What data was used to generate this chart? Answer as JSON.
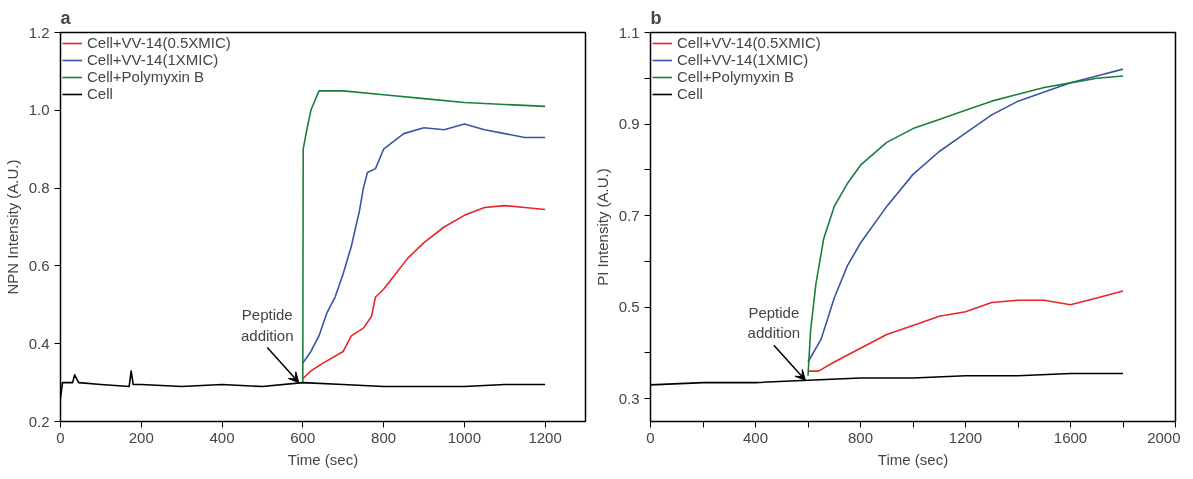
{
  "chart_data": [
    {
      "type": "line",
      "title": "a",
      "xlabel": "Time (sec)",
      "ylabel": "NPN Intensity (A.U.)",
      "xlim": [
        0,
        1300
      ],
      "ylim": [
        0.2,
        1.2
      ],
      "xticks": [
        0,
        200,
        400,
        600,
        800,
        1000,
        1200
      ],
      "yticks": [
        {
          "value": 0.2,
          "label": "0.2"
        },
        {
          "value": 0.4,
          "label": "0.4"
        },
        {
          "value": 0.6,
          "label": "0.6"
        },
        {
          "value": 0.8,
          "label": "0.8"
        },
        {
          "value": 1.0,
          "label": "1.0"
        },
        {
          "value": 1.2,
          "label": "1.2"
        }
      ],
      "grid": false,
      "legend": "top left",
      "marker": "none",
      "line_style": "solid",
      "annotations": [
        {
          "text": "Peptide\naddition",
          "x": 590,
          "y": 0.3
        }
      ],
      "series": [
        {
          "name": "Cell+VV-14(0.5XMIC)",
          "color": "#e8262a",
          "x": [
            600,
            620,
            650,
            700,
            720,
            750,
            770,
            780,
            800,
            830,
            860,
            900,
            950,
            1000,
            1050,
            1100,
            1150,
            1200
          ],
          "values": [
            0.31,
            0.33,
            0.35,
            0.38,
            0.42,
            0.44,
            0.47,
            0.52,
            0.54,
            0.58,
            0.62,
            0.66,
            0.7,
            0.73,
            0.75,
            0.755,
            0.75,
            0.745
          ]
        },
        {
          "name": "Cell+VV-14(1XMIC)",
          "color": "#3a55a4",
          "x": [
            600,
            620,
            640,
            660,
            680,
            700,
            720,
            740,
            750,
            760,
            780,
            800,
            850,
            900,
            950,
            1000,
            1050,
            1100,
            1150,
            1200
          ],
          "values": [
            0.35,
            0.38,
            0.42,
            0.48,
            0.52,
            0.58,
            0.65,
            0.74,
            0.8,
            0.84,
            0.85,
            0.9,
            0.94,
            0.955,
            0.95,
            0.965,
            0.95,
            0.94,
            0.93,
            0.93
          ]
        },
        {
          "name": "Cell+Polymyxin B",
          "color": "#1a7f3c",
          "x": [
            600,
            601,
            610,
            620,
            640,
            700,
            800,
            900,
            1000,
            1100,
            1200
          ],
          "values": [
            0.3,
            0.9,
            0.95,
            1.0,
            1.05,
            1.05,
            1.04,
            1.03,
            1.02,
            1.015,
            1.01
          ]
        },
        {
          "name": "Cell",
          "color": "#000000",
          "x": [
            0,
            5,
            30,
            35,
            45,
            100,
            170,
            175,
            180,
            200,
            300,
            400,
            500,
            600,
            700,
            800,
            900,
            1000,
            1100,
            1200
          ],
          "values": [
            0.26,
            0.3,
            0.3,
            0.32,
            0.3,
            0.295,
            0.29,
            0.33,
            0.295,
            0.295,
            0.29,
            0.295,
            0.29,
            0.3,
            0.295,
            0.29,
            0.29,
            0.29,
            0.295,
            0.295
          ]
        }
      ]
    },
    {
      "type": "line",
      "title": "b",
      "xlabel": "Time (sec)",
      "ylabel": "PI Intensity (A.U.)",
      "xlim": [
        0,
        2000
      ],
      "ylim": [
        0.25,
        1.1
      ],
      "xticks": [
        0,
        {
          "value": 200,
          "label": null
        },
        400,
        {
          "value": 600,
          "label": null
        },
        800,
        {
          "value": 1000,
          "label": null
        },
        1200,
        {
          "value": 1400,
          "label": null
        },
        1600,
        {
          "value": 1800,
          "label": null
        },
        2000
      ],
      "yticks": [
        0.3,
        {
          "value": 0.4,
          "label": null
        },
        0.5,
        {
          "value": 0.6,
          "label": null
        },
        0.7,
        {
          "value": 0.8,
          "label": null
        },
        0.9,
        {
          "value": 1.0,
          "label": null
        },
        1.1
      ],
      "grid": false,
      "legend": "top left",
      "marker": "none",
      "line_style": "solid",
      "annotations": [
        {
          "text": "Peptide\naddition",
          "x": 590,
          "y": 0.34
        }
      ],
      "series": [
        {
          "name": "Cell+VV-14(0.5XMIC)",
          "color": "#e8262a",
          "x": [
            600,
            640,
            700,
            800,
            900,
            1000,
            1100,
            1200,
            1300,
            1400,
            1500,
            1600,
            1700,
            1800
          ],
          "values": [
            0.36,
            0.36,
            0.38,
            0.41,
            0.44,
            0.46,
            0.48,
            0.49,
            0.51,
            0.515,
            0.515,
            0.505,
            0.52,
            0.535
          ]
        },
        {
          "name": "Cell+VV-14(1XMIC)",
          "color": "#3a55a4",
          "x": [
            600,
            650,
            700,
            750,
            800,
            900,
            1000,
            1100,
            1200,
            1300,
            1400,
            1500,
            1600,
            1700,
            1800
          ],
          "values": [
            0.38,
            0.43,
            0.52,
            0.59,
            0.64,
            0.72,
            0.79,
            0.84,
            0.88,
            0.92,
            0.95,
            0.97,
            0.99,
            1.005,
            1.02
          ]
        },
        {
          "name": "Cell+Polymyxin B",
          "color": "#1a7f3c",
          "x": [
            600,
            610,
            630,
            660,
            700,
            750,
            800,
            900,
            1000,
            1100,
            1200,
            1300,
            1400,
            1500,
            1600,
            1700,
            1800
          ],
          "values": [
            0.35,
            0.45,
            0.55,
            0.65,
            0.72,
            0.77,
            0.81,
            0.86,
            0.89,
            0.91,
            0.93,
            0.95,
            0.965,
            0.98,
            0.99,
            1.0,
            1.005
          ]
        },
        {
          "name": "Cell",
          "color": "#000000",
          "x": [
            0,
            200,
            400,
            600,
            800,
            1000,
            1200,
            1400,
            1600,
            1800
          ],
          "values": [
            0.33,
            0.335,
            0.335,
            0.34,
            0.345,
            0.345,
            0.35,
            0.35,
            0.355,
            0.355
          ]
        }
      ]
    }
  ]
}
